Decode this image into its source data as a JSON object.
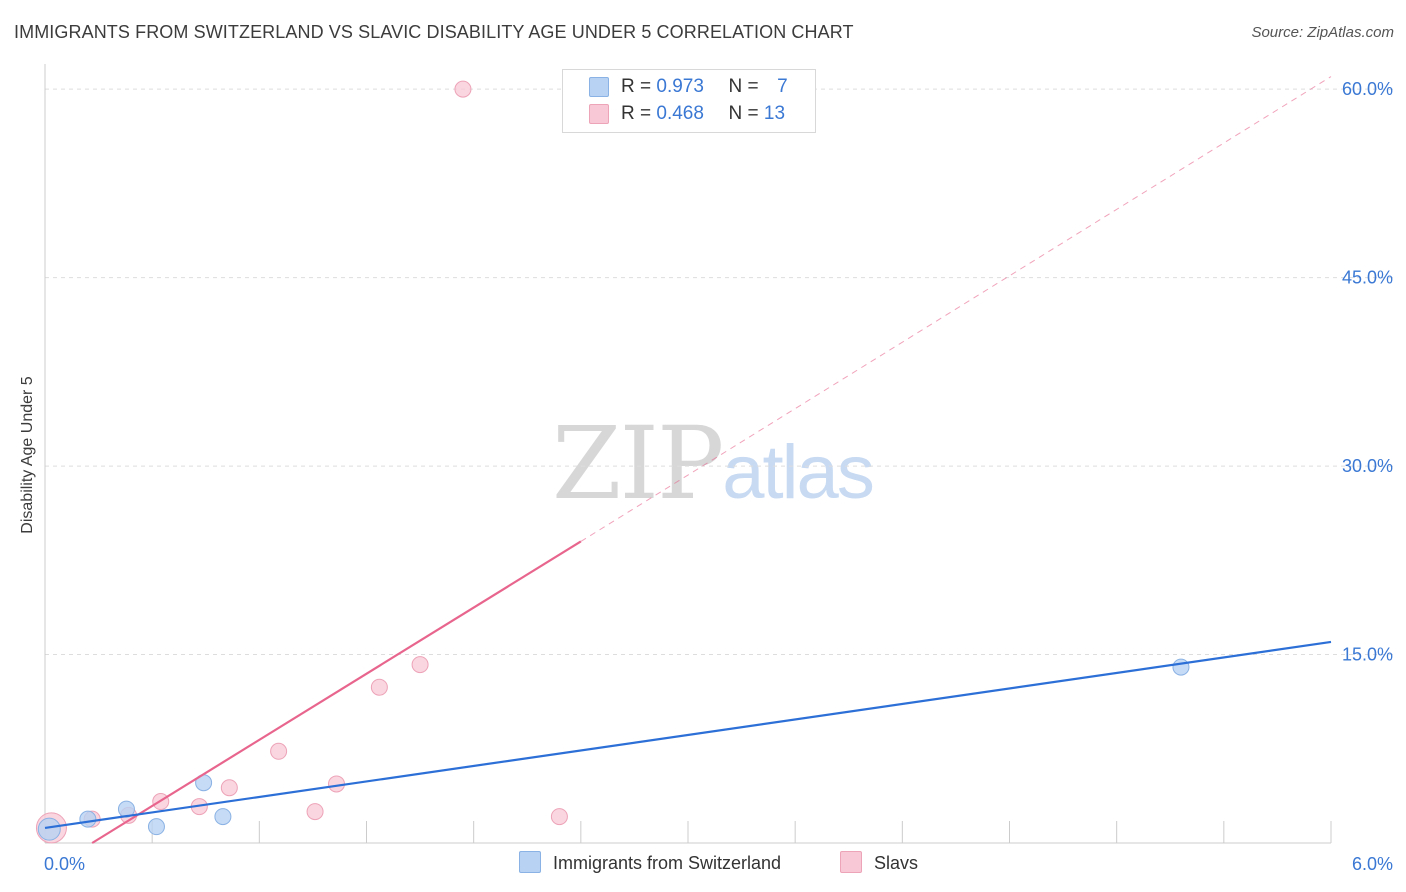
{
  "title": "IMMIGRANTS FROM SWITZERLAND VS SLAVIC DISABILITY AGE UNDER 5 CORRELATION CHART",
  "source": "Source: ZipAtlas.com",
  "watermark": {
    "zip": "ZIP",
    "atlas": "atlas"
  },
  "legend": {
    "rows": [
      {
        "r_label": "R =",
        "r_value": "0.973",
        "n_label": "N =",
        "n_value": "7"
      },
      {
        "r_label": "R =",
        "r_value": "0.468",
        "n_label": "N =",
        "n_value": "13"
      }
    ]
  },
  "colors": {
    "blue_fill": "#b8d2f3",
    "blue_stroke": "#8ab2e4",
    "blue_line": "#2c6fd6",
    "pink_fill": "#f8c8d6",
    "pink_stroke": "#eda3b8",
    "pink_line": "#e8658e",
    "grid": "#dddddd",
    "tick_label": "#3a78d4"
  },
  "chart_data": {
    "type": "scatter",
    "title": "IMMIGRANTS FROM SWITZERLAND VS SLAVIC DISABILITY AGE UNDER 5 CORRELATION CHART",
    "xlabel": "",
    "ylabel": "Disability Age Under 5",
    "xlim": [
      0,
      6.0
    ],
    "ylim": [
      0,
      62
    ],
    "x_tick_labels": [
      "0.0%",
      "6.0%"
    ],
    "y_ticks": [
      15,
      30,
      45,
      60
    ],
    "y_tick_labels": [
      "15.0%",
      "30.0%",
      "45.0%",
      "60.0%"
    ],
    "series": [
      {
        "name": "Immigrants from Switzerland",
        "color": "blue",
        "points": [
          {
            "x": 0.02,
            "y": 1.1
          },
          {
            "x": 0.2,
            "y": 1.9
          },
          {
            "x": 0.38,
            "y": 2.7
          },
          {
            "x": 0.52,
            "y": 1.3
          },
          {
            "x": 0.74,
            "y": 4.8
          },
          {
            "x": 0.83,
            "y": 2.1
          },
          {
            "x": 5.3,
            "y": 14.0
          }
        ],
        "trend": {
          "x": [
            0.0,
            6.0
          ],
          "y": [
            1.2,
            16.0
          ],
          "dashed_extension": false
        }
      },
      {
        "name": "Slavs",
        "color": "pink",
        "points": [
          {
            "x": 0.03,
            "y": 1.2
          },
          {
            "x": 0.22,
            "y": 1.9
          },
          {
            "x": 0.39,
            "y": 2.2
          },
          {
            "x": 0.54,
            "y": 3.3
          },
          {
            "x": 0.72,
            "y": 2.9
          },
          {
            "x": 0.86,
            "y": 4.4
          },
          {
            "x": 1.09,
            "y": 7.3
          },
          {
            "x": 1.26,
            "y": 2.5
          },
          {
            "x": 1.36,
            "y": 4.7
          },
          {
            "x": 1.56,
            "y": 12.4
          },
          {
            "x": 1.75,
            "y": 14.2
          },
          {
            "x": 1.95,
            "y": 60.0
          },
          {
            "x": 2.4,
            "y": 2.1
          }
        ],
        "trend": {
          "x": [
            0.22,
            2.5
          ],
          "y": [
            0.0,
            24.0
          ],
          "dashed_to": {
            "x": 6.0,
            "y": 61.0
          }
        }
      }
    ]
  }
}
